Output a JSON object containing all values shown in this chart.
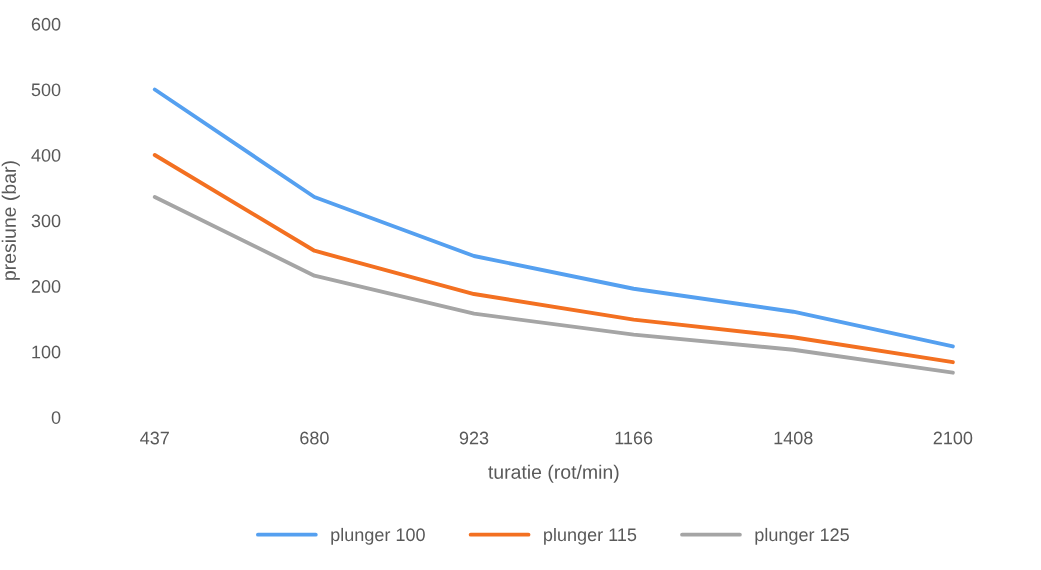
{
  "chart_data": {
    "type": "line",
    "xlabel": "turatie (rot/min)",
    "ylabel": "presiune (bar)",
    "categories": [
      "437",
      "680",
      "923",
      "1166",
      "1408",
      "2100"
    ],
    "series": [
      {
        "name": "plunger 100",
        "color": "#55a0f0",
        "values": [
          500,
          336,
          246,
          196,
          161,
          108
        ]
      },
      {
        "name": "plunger 115",
        "color": "#f37021",
        "values": [
          400,
          254,
          188,
          149,
          122,
          84
        ]
      },
      {
        "name": "plunger 125",
        "color": "#a5a5a5",
        "values": [
          336,
          216,
          158,
          126,
          103,
          68
        ]
      }
    ],
    "ylim": [
      0,
      600
    ],
    "yticks": [
      0,
      100,
      200,
      300,
      400,
      500,
      600
    ],
    "grid": false,
    "legend": "bottom",
    "marker": "none",
    "line_style": "solid"
  }
}
